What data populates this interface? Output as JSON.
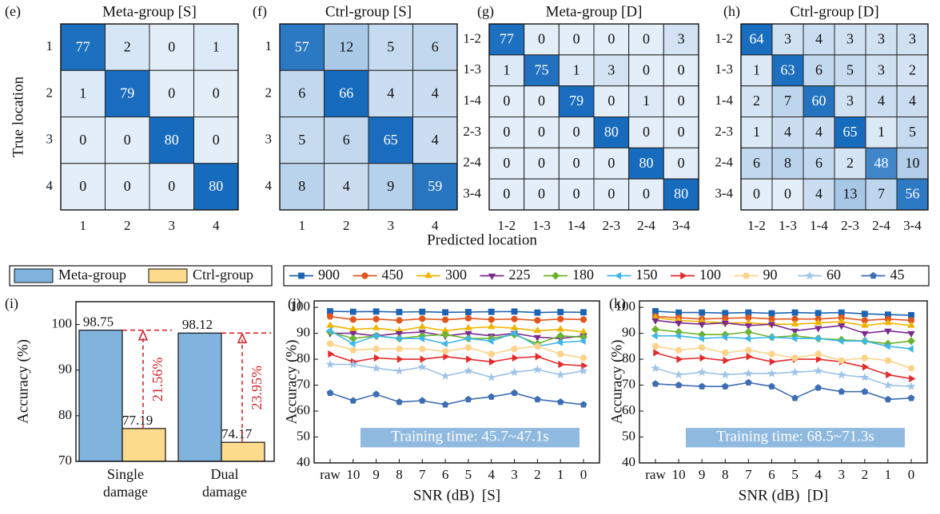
{
  "chart_data": [
    {
      "type": "heatmap",
      "panel": "(e)",
      "title": "Meta-group [S]",
      "ylabel": "True location",
      "x_categories": [
        "1",
        "2",
        "3",
        "4"
      ],
      "y_categories": [
        "1",
        "2",
        "3",
        "4"
      ],
      "values": [
        [
          77,
          2,
          0,
          1
        ],
        [
          1,
          79,
          0,
          0
        ],
        [
          0,
          0,
          80,
          0
        ],
        [
          0,
          0,
          0,
          80
        ]
      ]
    },
    {
      "type": "heatmap",
      "panel": "(f)",
      "title": "Ctrl-group [S]",
      "x_categories": [
        "1",
        "2",
        "3",
        "4"
      ],
      "y_categories": [
        "1",
        "2",
        "3",
        "4"
      ],
      "values": [
        [
          57,
          12,
          5,
          6
        ],
        [
          6,
          66,
          4,
          4
        ],
        [
          5,
          6,
          65,
          4
        ],
        [
          8,
          4,
          9,
          59
        ]
      ]
    },
    {
      "type": "heatmap",
      "panel": "(g)",
      "title": "Meta-group [D]",
      "xlabel": "Predicted location",
      "x_categories": [
        "1-2",
        "1-3",
        "1-4",
        "2-3",
        "2-4",
        "3-4"
      ],
      "y_categories": [
        "1-2",
        "1-3",
        "1-4",
        "2-3",
        "2-4",
        "3-4"
      ],
      "values": [
        [
          77,
          0,
          0,
          0,
          0,
          3
        ],
        [
          1,
          75,
          1,
          3,
          0,
          0
        ],
        [
          0,
          0,
          79,
          0,
          1,
          0
        ],
        [
          0,
          0,
          0,
          80,
          0,
          0
        ],
        [
          0,
          0,
          0,
          0,
          80,
          0
        ],
        [
          0,
          0,
          0,
          0,
          0,
          80
        ]
      ]
    },
    {
      "type": "heatmap",
      "panel": "(h)",
      "title": "Ctrl-group [D]",
      "x_categories": [
        "1-2",
        "1-3",
        "1-4",
        "2-3",
        "2-4",
        "3-4"
      ],
      "y_categories": [
        "1-2",
        "1-3",
        "1-4",
        "2-3",
        "2-4",
        "3-4"
      ],
      "values": [
        [
          64,
          3,
          4,
          3,
          3,
          3
        ],
        [
          1,
          63,
          6,
          5,
          3,
          2
        ],
        [
          2,
          7,
          60,
          3,
          4,
          4
        ],
        [
          1,
          4,
          4,
          65,
          1,
          5
        ],
        [
          6,
          8,
          6,
          2,
          48,
          10
        ],
        [
          0,
          0,
          4,
          13,
          7,
          56
        ]
      ]
    },
    {
      "type": "bar",
      "panel": "(i)",
      "ylabel": "Accuracy (%)",
      "categories": [
        "Single damage",
        "Dual damage"
      ],
      "series": [
        {
          "name": "Meta-group",
          "color": "#80b3de",
          "values": [
            98.75,
            98.12
          ]
        },
        {
          "name": "Ctrl-group",
          "color": "#fcdb8c",
          "values": [
            77.19,
            74.17
          ]
        }
      ],
      "annotations": [
        "21.56%",
        "23.95%"
      ],
      "annotation_color": "#d6262b",
      "ylim": [
        70,
        105
      ],
      "yticks": [
        70,
        80,
        90,
        100
      ]
    },
    {
      "type": "line",
      "panel": "(j)",
      "ylabel": "Accuracy (%)",
      "xlabel": "SNR (dB)  [S]",
      "annotation": "Training time: 45.7~47.1s",
      "categories": [
        "raw",
        "10",
        "9",
        "8",
        "7",
        "6",
        "5",
        "4",
        "3",
        "2",
        "1",
        "0"
      ],
      "ylim": [
        40,
        102.5
      ],
      "yticks": [
        40,
        50,
        60,
        70,
        80,
        90,
        100
      ],
      "series": [
        {
          "name": "900",
          "color": "#1d63b3",
          "marker": "square",
          "values": [
            98.5,
            98.3,
            98.4,
            98.2,
            98.3,
            98.1,
            98.2,
            98.3,
            98.4,
            98.0,
            98.2,
            98.1
          ]
        },
        {
          "name": "450",
          "color": "#e2561e",
          "marker": "circle",
          "values": [
            96.5,
            95.3,
            95.5,
            95.0,
            95.6,
            95.2,
            95.8,
            95.3,
            95.5,
            95.0,
            95.5,
            95.3
          ]
        },
        {
          "name": "300",
          "color": "#efb500",
          "marker": "triangle-up",
          "values": [
            93,
            91.5,
            92,
            91,
            92.5,
            91,
            92,
            92.5,
            92,
            91,
            91.5,
            90.5
          ]
        },
        {
          "name": "225",
          "color": "#7a2c8e",
          "marker": "triangle-down",
          "values": [
            90,
            90,
            89,
            90,
            90.5,
            89,
            90,
            89,
            90,
            88.5,
            88,
            89
          ]
        },
        {
          "name": "180",
          "color": "#6cb42e",
          "marker": "diamond",
          "values": [
            90.5,
            88,
            89,
            88,
            89,
            89.5,
            88,
            88,
            89.5,
            86,
            89,
            88.5
          ]
        },
        {
          "name": "150",
          "color": "#3fb6e8",
          "marker": "triangle-left",
          "values": [
            91,
            86,
            89,
            88,
            88,
            86,
            88,
            87,
            90,
            85,
            86.5,
            87
          ]
        },
        {
          "name": "100",
          "color": "#e32b2b",
          "marker": "triangle-right",
          "values": [
            82,
            79,
            80.5,
            80,
            80,
            81,
            80,
            79,
            80.5,
            81,
            78,
            77.5
          ]
        },
        {
          "name": "90",
          "color": "#fbd389",
          "marker": "hexagon",
          "values": [
            86,
            83.5,
            84,
            84,
            84,
            83,
            84.5,
            82,
            84,
            85,
            82,
            80.5
          ]
        },
        {
          "name": "60",
          "color": "#9dc3e6",
          "marker": "star",
          "values": [
            78,
            78,
            76.5,
            75.5,
            77,
            73.5,
            75.5,
            73,
            75,
            76,
            74,
            75.5
          ]
        },
        {
          "name": "45",
          "color": "#3e6db3",
          "marker": "pentagon",
          "values": [
            67,
            64,
            66.5,
            63.5,
            64,
            62.5,
            64.5,
            65.5,
            67,
            64.5,
            63.5,
            62.5
          ]
        }
      ]
    },
    {
      "type": "line",
      "panel": "(k)",
      "ylabel": "Accuracy (%)",
      "xlabel": "SNR (dB)  [D]",
      "annotation": "Training time: 68.5~71.3s",
      "categories": [
        "raw",
        "10",
        "9",
        "8",
        "7",
        "6",
        "5",
        "4",
        "3",
        "2",
        "1",
        "0"
      ],
      "ylim": [
        40,
        102.5
      ],
      "yticks": [
        40,
        50,
        60,
        70,
        80,
        90,
        100
      ],
      "series": [
        {
          "name": "900",
          "color": "#1d63b3",
          "marker": "square",
          "values": [
            98.5,
            98,
            98,
            97.8,
            98,
            97.7,
            98,
            97.8,
            98,
            97.5,
            97.2,
            97
          ]
        },
        {
          "name": "450",
          "color": "#e2561e",
          "marker": "circle",
          "values": [
            96.5,
            96,
            95.5,
            95.8,
            96,
            95.5,
            95.5,
            95.5,
            96,
            95,
            95.5,
            95
          ]
        },
        {
          "name": "300",
          "color": "#efb500",
          "marker": "triangle-up",
          "values": [
            96,
            95,
            94.5,
            94,
            94,
            93.5,
            93.5,
            94,
            94.5,
            93,
            94,
            93
          ]
        },
        {
          "name": "225",
          "color": "#7a2c8e",
          "marker": "triangle-down",
          "values": [
            95,
            94,
            93.5,
            94,
            93,
            93.5,
            91,
            92,
            93,
            90,
            91,
            90
          ]
        },
        {
          "name": "180",
          "color": "#6cb42e",
          "marker": "diamond",
          "values": [
            91.5,
            90.5,
            89.5,
            89.5,
            90.5,
            88.5,
            89,
            88,
            87.5,
            87,
            86,
            87
          ]
        },
        {
          "name": "150",
          "color": "#3fb6e8",
          "marker": "triangle-left",
          "values": [
            89,
            89,
            88,
            88.5,
            88,
            88.5,
            88,
            88,
            87,
            87,
            85,
            84
          ]
        },
        {
          "name": "100",
          "color": "#e32b2b",
          "marker": "triangle-right",
          "values": [
            82.5,
            80,
            80.5,
            79.5,
            81,
            79,
            80,
            80,
            79,
            77,
            74,
            72.5
          ]
        },
        {
          "name": "90",
          "color": "#fbd389",
          "marker": "hexagon",
          "values": [
            85,
            83.5,
            84.5,
            82.5,
            83.5,
            82,
            80.5,
            82,
            79.5,
            80.5,
            79.5,
            76.5
          ]
        },
        {
          "name": "60",
          "color": "#9dc3e6",
          "marker": "star",
          "values": [
            76.5,
            74,
            75,
            74,
            74.5,
            74.5,
            75,
            75.5,
            74,
            73,
            70,
            69.5
          ]
        },
        {
          "name": "45",
          "color": "#3e6db3",
          "marker": "pentagon",
          "values": [
            70.5,
            70,
            69.5,
            69.5,
            71,
            69.5,
            65,
            69,
            67.5,
            67.5,
            64.5,
            65
          ]
        }
      ]
    }
  ]
}
